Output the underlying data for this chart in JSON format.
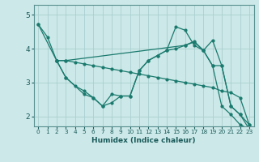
{
  "xlabel": "Humidex (Indice chaleur)",
  "bg_color": "#cce8e8",
  "grid_color": "#aacfcf",
  "line_color": "#1a7a6e",
  "xlim": [
    -0.5,
    23.5
  ],
  "ylim": [
    1.7,
    5.3
  ],
  "yticks": [
    2,
    3,
    4,
    5
  ],
  "xticks": [
    0,
    1,
    2,
    3,
    4,
    5,
    6,
    7,
    8,
    9,
    10,
    11,
    12,
    13,
    14,
    15,
    16,
    17,
    18,
    19,
    20,
    21,
    22,
    23
  ],
  "series": [
    {
      "x": [
        0,
        1,
        2,
        3,
        16,
        17,
        18,
        19,
        20,
        21,
        22,
        23
      ],
      "y": [
        4.72,
        4.35,
        3.65,
        3.65,
        4.1,
        4.22,
        3.95,
        4.25,
        3.5,
        2.3,
        2.05,
        1.75
      ]
    },
    {
      "x": [
        0,
        2,
        3,
        4,
        5,
        6,
        7,
        8,
        9,
        10,
        11,
        12,
        13,
        14,
        15,
        16,
        17,
        18,
        19,
        20,
        21,
        22,
        23
      ],
      "y": [
        4.72,
        3.65,
        3.65,
        3.6,
        3.55,
        3.5,
        3.45,
        3.4,
        3.35,
        3.3,
        3.25,
        3.2,
        3.15,
        3.1,
        3.05,
        3.0,
        2.95,
        2.9,
        2.85,
        2.75,
        2.7,
        2.55,
        1.75
      ]
    },
    {
      "x": [
        2,
        3,
        4,
        5,
        6,
        7,
        8,
        9,
        10,
        11,
        12,
        13,
        14,
        15,
        16,
        17,
        18,
        19,
        20,
        21,
        22,
        23
      ],
      "y": [
        3.65,
        3.15,
        2.9,
        2.75,
        2.55,
        2.3,
        2.65,
        2.6,
        2.6,
        3.35,
        3.65,
        3.8,
        3.95,
        4.0,
        4.1,
        4.2,
        3.95,
        3.5,
        2.3,
        2.05,
        1.75,
        1.62
      ]
    },
    {
      "x": [
        2,
        3,
        5,
        6,
        7,
        8,
        9,
        10,
        11,
        12,
        13,
        14,
        15,
        16,
        17,
        18,
        19,
        20,
        21,
        22,
        23
      ],
      "y": [
        3.65,
        3.15,
        2.65,
        2.55,
        2.3,
        2.4,
        2.6,
        2.6,
        3.35,
        3.65,
        3.8,
        3.95,
        4.65,
        4.55,
        4.1,
        3.95,
        3.5,
        3.5,
        2.3,
        2.05,
        1.62
      ]
    }
  ]
}
